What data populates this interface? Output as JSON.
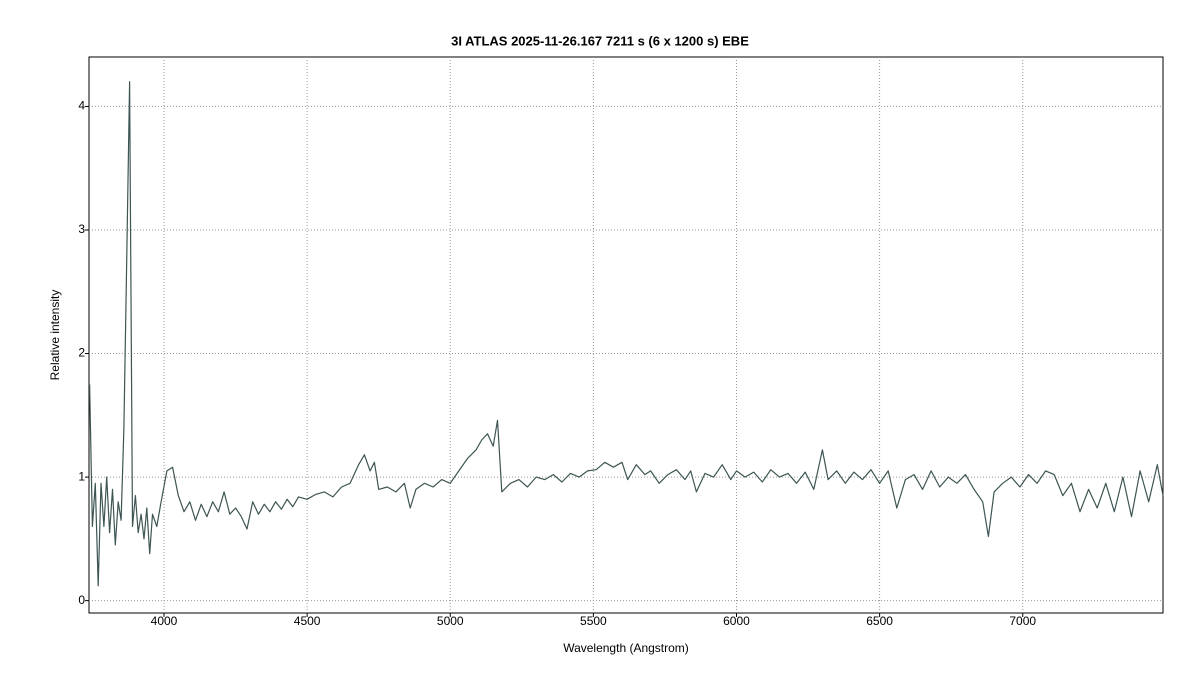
{
  "chart_data": {
    "type": "line",
    "title": "3I ATLAS  2025-11-26.167  7211 s (6 x 1200 s)  EBE",
    "x_label": "Wavelength (Angstrom)",
    "y_label": "Relative intensity",
    "color": "#3d5553",
    "grid": true,
    "xlim": [
      3738,
      7490
    ],
    "ylim": [
      -0.1,
      4.4
    ],
    "xticks": [
      4000,
      4500,
      5000,
      5500,
      6000,
      6500,
      7000
    ],
    "yticks": [
      0,
      1,
      2,
      3,
      4
    ],
    "x": [
      3740,
      3750,
      3760,
      3770,
      3780,
      3790,
      3800,
      3810,
      3820,
      3830,
      3840,
      3850,
      3860,
      3870,
      3880,
      3890,
      3900,
      3910,
      3920,
      3930,
      3940,
      3950,
      3960,
      3975,
      3990,
      4010,
      4030,
      4050,
      4070,
      4090,
      4110,
      4130,
      4150,
      4170,
      4190,
      4210,
      4230,
      4250,
      4270,
      4290,
      4310,
      4330,
      4350,
      4370,
      4390,
      4410,
      4430,
      4450,
      4470,
      4500,
      4530,
      4560,
      4590,
      4620,
      4650,
      4680,
      4700,
      4720,
      4735,
      4750,
      4780,
      4810,
      4840,
      4860,
      4880,
      4910,
      4940,
      4970,
      5000,
      5030,
      5060,
      5090,
      5110,
      5130,
      5150,
      5165,
      5180,
      5210,
      5240,
      5270,
      5300,
      5330,
      5360,
      5390,
      5420,
      5450,
      5480,
      5510,
      5540,
      5570,
      5600,
      5620,
      5650,
      5680,
      5700,
      5730,
      5760,
      5790,
      5820,
      5840,
      5860,
      5890,
      5920,
      5950,
      5980,
      6000,
      6030,
      6060,
      6090,
      6120,
      6150,
      6180,
      6210,
      6240,
      6270,
      6300,
      6320,
      6350,
      6380,
      6410,
      6440,
      6470,
      6500,
      6530,
      6560,
      6590,
      6620,
      6650,
      6680,
      6710,
      6740,
      6770,
      6800,
      6830,
      6860,
      6880,
      6900,
      6930,
      6960,
      6990,
      7020,
      7050,
      7080,
      7110,
      7140,
      7170,
      7200,
      7230,
      7260,
      7290,
      7320,
      7350,
      7380,
      7410,
      7440,
      7470,
      7490
    ],
    "values": [
      1.75,
      0.6,
      0.95,
      0.12,
      0.95,
      0.6,
      1.0,
      0.55,
      0.9,
      0.45,
      0.8,
      0.65,
      1.4,
      2.8,
      4.2,
      0.6,
      0.85,
      0.55,
      0.7,
      0.5,
      0.75,
      0.38,
      0.7,
      0.6,
      0.8,
      1.05,
      1.08,
      0.85,
      0.72,
      0.8,
      0.65,
      0.78,
      0.68,
      0.8,
      0.72,
      0.88,
      0.7,
      0.75,
      0.68,
      0.58,
      0.8,
      0.7,
      0.78,
      0.72,
      0.8,
      0.74,
      0.82,
      0.76,
      0.84,
      0.82,
      0.86,
      0.88,
      0.84,
      0.92,
      0.95,
      1.1,
      1.18,
      1.05,
      1.12,
      0.9,
      0.92,
      0.88,
      0.95,
      0.75,
      0.9,
      0.95,
      0.92,
      0.98,
      0.95,
      1.05,
      1.15,
      1.22,
      1.3,
      1.35,
      1.25,
      1.46,
      0.88,
      0.95,
      0.98,
      0.92,
      1.0,
      0.98,
      1.02,
      0.96,
      1.03,
      1.0,
      1.05,
      1.06,
      1.12,
      1.08,
      1.12,
      0.98,
      1.1,
      1.02,
      1.05,
      0.95,
      1.02,
      1.06,
      0.98,
      1.05,
      0.88,
      1.03,
      1.0,
      1.1,
      0.98,
      1.05,
      1.0,
      1.04,
      0.96,
      1.06,
      1.0,
      1.03,
      0.95,
      1.04,
      0.9,
      1.22,
      0.98,
      1.05,
      0.95,
      1.04,
      0.98,
      1.06,
      0.95,
      1.05,
      0.75,
      0.98,
      1.02,
      0.9,
      1.05,
      0.92,
      1.0,
      0.95,
      1.02,
      0.9,
      0.8,
      0.52,
      0.88,
      0.95,
      1.0,
      0.92,
      1.02,
      0.95,
      1.05,
      1.02,
      0.85,
      0.95,
      0.72,
      0.9,
      0.75,
      0.95,
      0.72,
      1.0,
      0.68,
      1.05,
      0.8,
      1.1,
      0.85
    ]
  }
}
